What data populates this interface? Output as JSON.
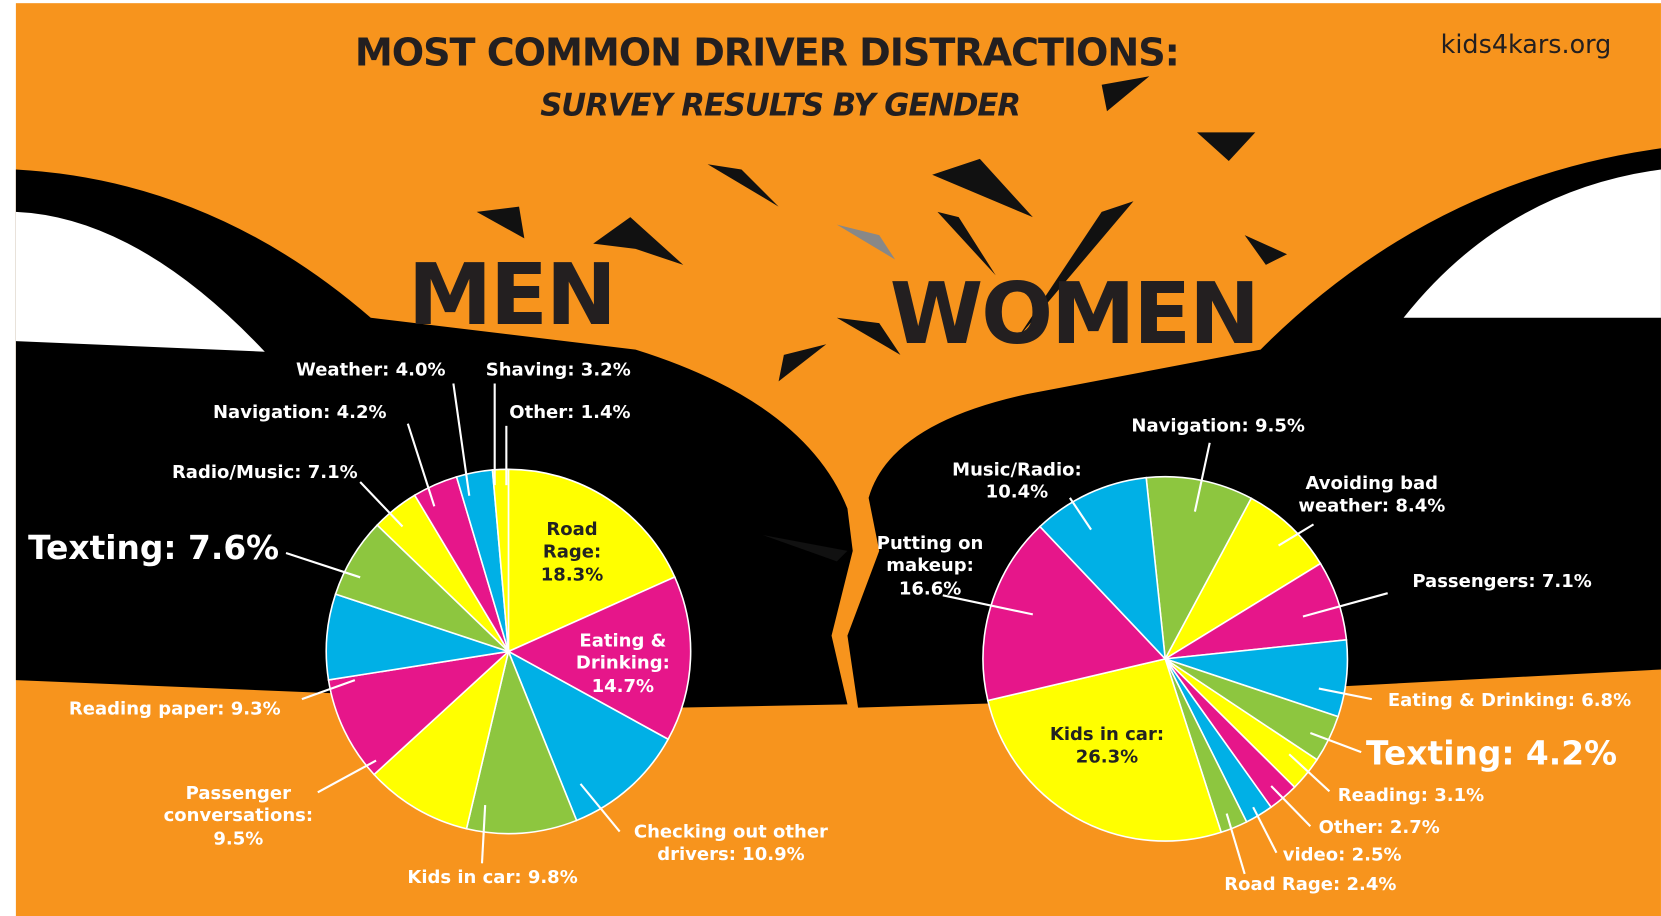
{
  "title": "MOST COMMON DRIVER DISTRACTIONS:",
  "subtitle": "SURVEY RESULTS BY GENDER",
  "source": "kids4kars.org",
  "chart_data": [
    {
      "type": "pie",
      "title": "MEN",
      "labels": [
        "Road Rage: 18.3%",
        "Eating & Drinking: 14.7%",
        "Checking out other drivers: 10.9%",
        "Kids in car: 9.8%",
        "Passenger conversations: 9.5%",
        "Reading paper: 9.3%",
        "Texting: 7.6%",
        "Radio/Music: 7.1%",
        "Navigation: 4.2%",
        "Weather: 4.0%",
        "Shaving: 3.2%",
        "Other: 1.4%"
      ],
      "values": [
        18.3,
        14.7,
        10.9,
        9.8,
        9.5,
        9.3,
        7.6,
        7.1,
        4.2,
        4.0,
        3.2,
        1.4
      ],
      "colors": [
        "#ffff00",
        "#e6168a",
        "#00b0e6",
        "#8dc63f",
        "#ffff00",
        "#e6168a",
        "#00b0e6",
        "#8dc63f",
        "#ffff00",
        "#e6168a",
        "#00b0e6",
        "#ffff00"
      ]
    },
    {
      "type": "pie",
      "title": "WOMEN",
      "labels": [
        "Navigation: 9.5%",
        "Avoiding bad weather: 8.4%",
        "Passengers: 7.1%",
        "Eating & Drinking: 6.8%",
        "Texting: 4.2%",
        "Reading: 3.1%",
        "Other: 2.7%",
        "video: 2.5%",
        "Road Rage: 2.4%",
        "Kids in car: 26.3%",
        "Putting on makeup: 16.6%",
        "Music/Radio: 10.4%"
      ],
      "values": [
        9.5,
        8.4,
        7.1,
        6.8,
        4.2,
        3.1,
        2.7,
        2.5,
        2.4,
        26.3,
        16.6,
        10.4
      ],
      "colors": [
        "#8dc63f",
        "#ffff00",
        "#e6168a",
        "#00b0e6",
        "#8dc63f",
        "#ffff00",
        "#e6168a",
        "#00b0e6",
        "#8dc63f",
        "#ffff00",
        "#e6168a",
        "#00b0e6"
      ]
    }
  ]
}
